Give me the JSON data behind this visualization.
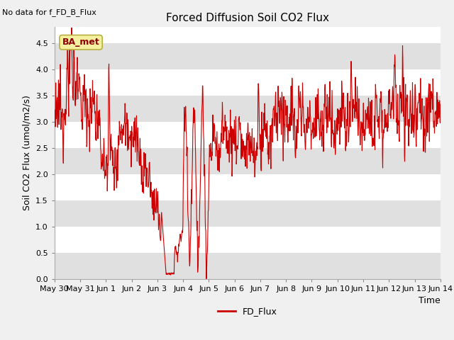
{
  "title": "Forced Diffusion Soil CO2 Flux",
  "no_data_label": "No data for f_FD_B_Flux",
  "ba_met_label": "BA_met",
  "ylabel": "Soil CO2 Flux (umol/m2/s)",
  "xlabel": "Time",
  "legend_label": "FD_Flux",
  "line_color": "#cc0000",
  "ylim": [
    0.0,
    4.8
  ],
  "yticks": [
    0.0,
    0.5,
    1.0,
    1.5,
    2.0,
    2.5,
    3.0,
    3.5,
    4.0,
    4.5
  ],
  "ytick_labels": [
    "0.0",
    "0.5",
    "1.0",
    "1.5",
    "2.0",
    "2.5",
    "3.0",
    "3.5",
    "4.0",
    "4.5"
  ],
  "fig_bg": "#f0f0f0",
  "plot_bg": "#ffffff",
  "band_color": "#e0e0e0",
  "tick_labels": [
    "May 30",
    "May 31",
    "Jun 1",
    "Jun 2",
    "Jun 3",
    "Jun 4",
    "Jun 5",
    "Jun 6",
    "Jun 7",
    "Jun 8",
    "Jun 9",
    "Jun 10",
    "Jun 11",
    "Jun 12",
    "Jun 13",
    "Jun 14"
  ]
}
